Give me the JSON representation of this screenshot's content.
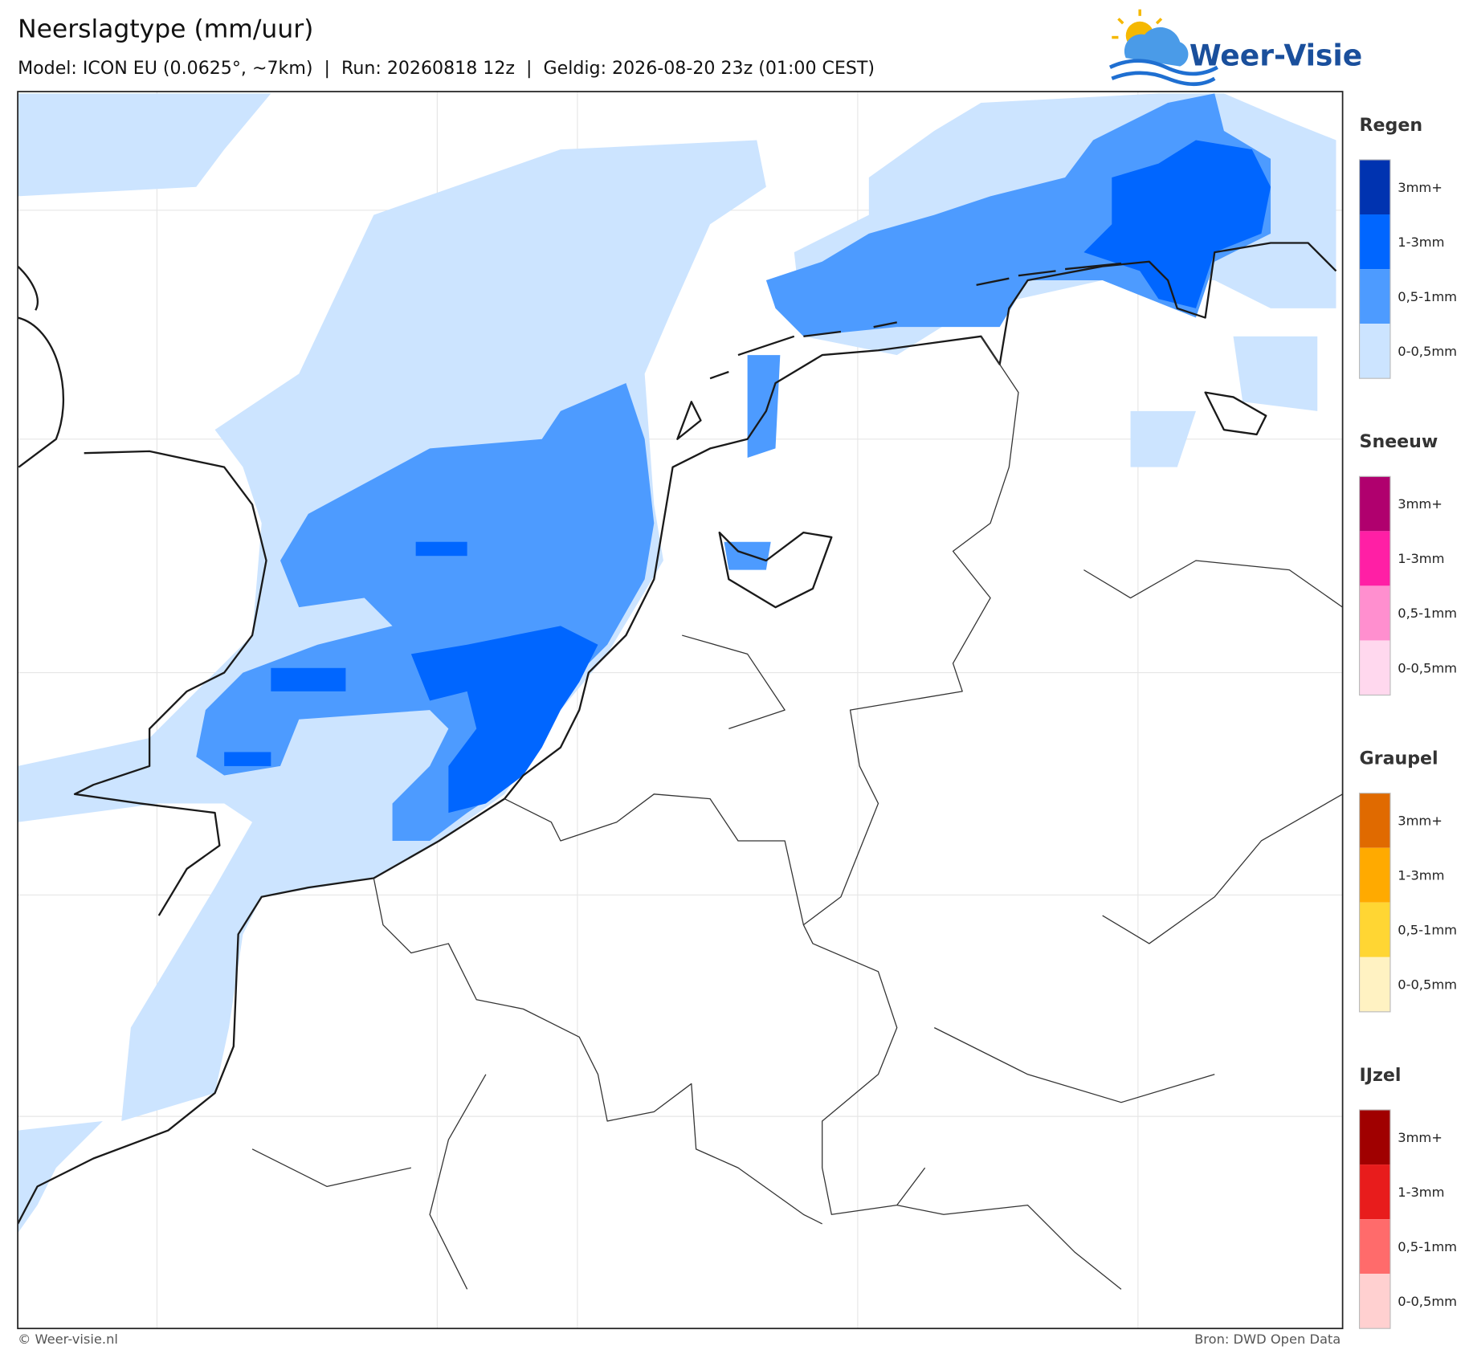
{
  "header": {
    "title": "Neerslagtype (mm/uur)",
    "subtitle": "Model: ICON EU (0.0625°, ~7km)  |  Run: 20260818 12z  |  Geldig: 2026-08-20 23z (01:00 CEST)"
  },
  "logo": {
    "text": "Weer-Visie"
  },
  "legend": [
    {
      "name": "Regen",
      "items": [
        {
          "label": "3mm+",
          "color": "#0033b0"
        },
        {
          "label": "1-3mm",
          "color": "#0066ff"
        },
        {
          "label": "0,5-1mm",
          "color": "#4d9bff"
        },
        {
          "label": "0-0,5mm",
          "color": "#cce4ff"
        }
      ]
    },
    {
      "name": "Sneeuw",
      "items": [
        {
          "label": "3mm+",
          "color": "#b0006e"
        },
        {
          "label": "1-3mm",
          "color": "#ff1fa5"
        },
        {
          "label": "0,5-1mm",
          "color": "#ff8fcf"
        },
        {
          "label": "0-0,5mm",
          "color": "#ffd8ee"
        }
      ]
    },
    {
      "name": "Graupel",
      "items": [
        {
          "label": "3mm+",
          "color": "#e06a00"
        },
        {
          "label": "1-3mm",
          "color": "#ffaa00"
        },
        {
          "label": "0,5-1mm",
          "color": "#ffd633"
        },
        {
          "label": "0-0,5mm",
          "color": "#fff2c2"
        }
      ]
    },
    {
      "name": "IJzel",
      "items": [
        {
          "label": "3mm+",
          "color": "#a00000"
        },
        {
          "label": "1-3mm",
          "color": "#e81c1c"
        },
        {
          "label": "0,5-1mm",
          "color": "#ff6b6b"
        },
        {
          "label": "0-0,5mm",
          "color": "#ffd0d0"
        }
      ]
    }
  ],
  "footer": {
    "left": "© Weer-visie.nl",
    "right": "Bron: DWD Open Data"
  }
}
